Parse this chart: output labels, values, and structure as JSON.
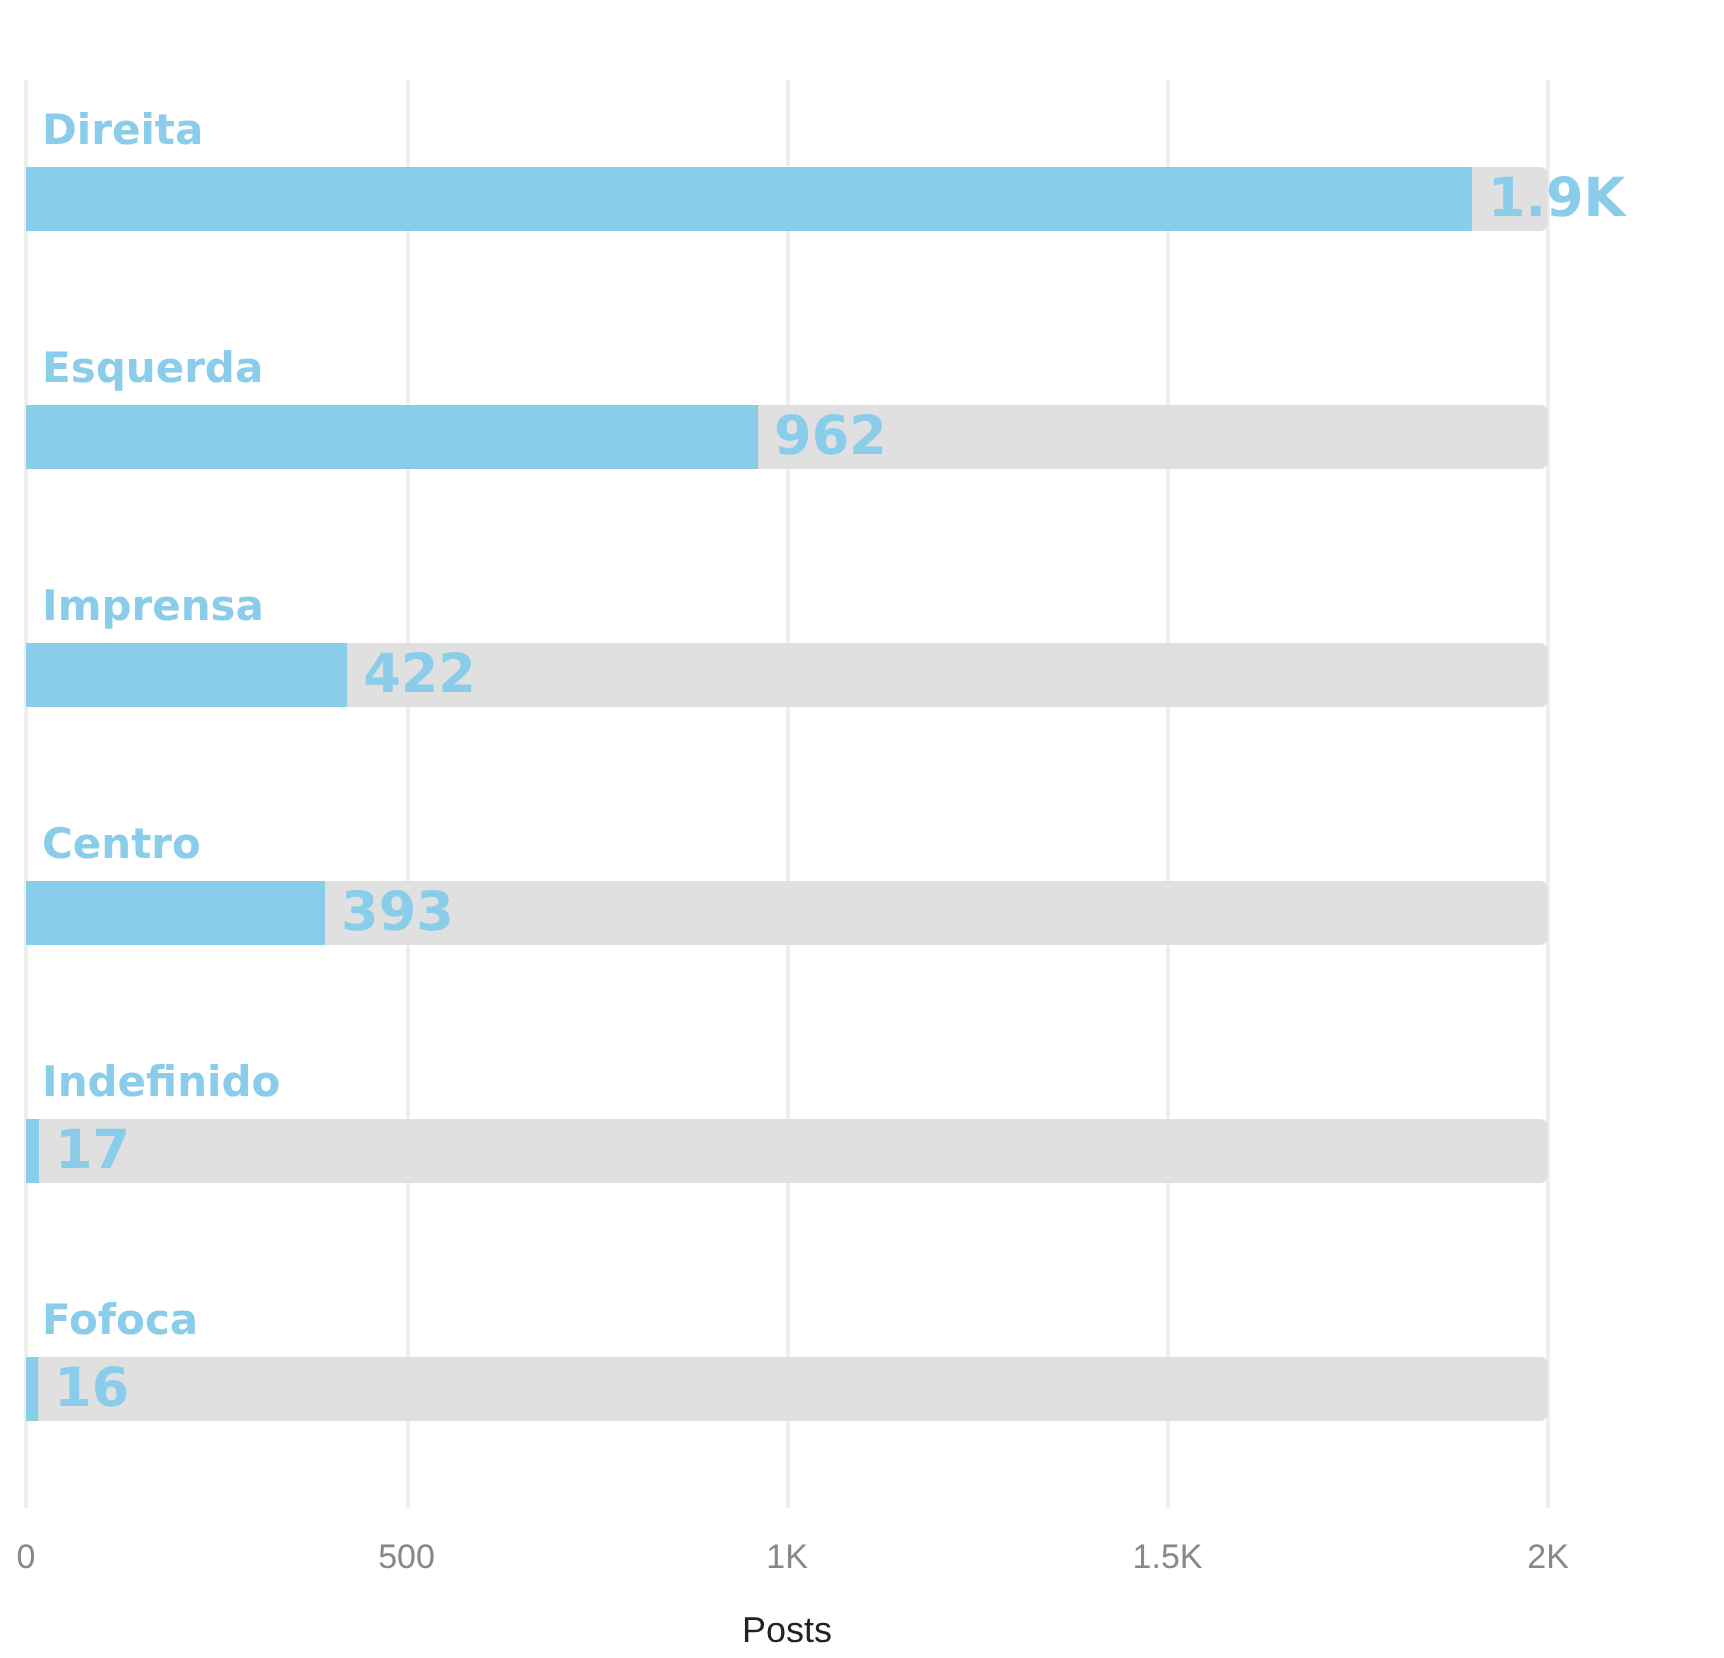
{
  "chart_data": {
    "type": "bar",
    "orientation": "horizontal",
    "xlabel": "Posts",
    "categories": [
      "Direita",
      "Esquerda",
      "Imprensa",
      "Centro",
      "Indefinido",
      "Fofoca"
    ],
    "values": [
      1900,
      962,
      422,
      393,
      17,
      16
    ],
    "value_labels": [
      "1.9K",
      "962",
      "422",
      "393",
      "17",
      "16"
    ],
    "color": "#89cdeb",
    "xlim": [
      0,
      2000
    ],
    "xticks": [
      0,
      {
        "value": 500,
        "label": "500"
      },
      {
        "value": 1000,
        "label": "1K"
      },
      {
        "value": 1500,
        "label": "1.5K"
      },
      {
        "value": 2000,
        "label": "2K"
      }
    ],
    "grid": "x"
  }
}
